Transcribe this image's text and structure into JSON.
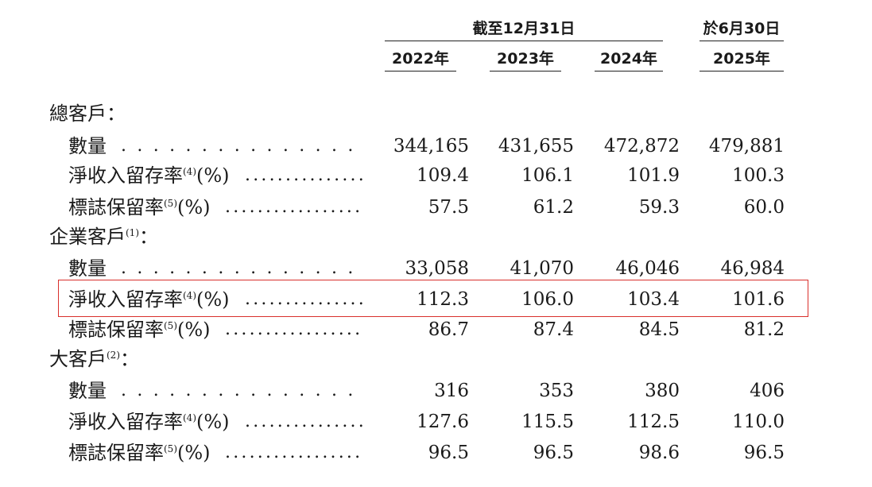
{
  "header": {
    "group_label": "截至12月31日",
    "interim_label": "於6月30日",
    "years": [
      "2022年",
      "2023年",
      "2024年",
      "2025年"
    ]
  },
  "sections": [
    {
      "title": "總客戶",
      "title_note": "",
      "title_suffix": "：",
      "rows": [
        {
          "label": "數量",
          "note": "",
          "unit": "",
          "values": [
            "344,165",
            "431,655",
            "472,872",
            "479,881"
          ]
        },
        {
          "label": "淨收入留存率",
          "note": "(4)",
          "unit": "(%)",
          "values": [
            "109.4",
            "106.1",
            "101.9",
            "100.3"
          ]
        },
        {
          "label": "標誌保留率",
          "note": "(5)",
          "unit": "(%)",
          "values": [
            "57.5",
            "61.2",
            "59.3",
            "60.0"
          ]
        }
      ]
    },
    {
      "title": "企業客戶",
      "title_note": "(1)",
      "title_suffix": "：",
      "rows": [
        {
          "label": "數量",
          "note": "",
          "unit": "",
          "values": [
            "33,058",
            "41,070",
            "46,046",
            "46,984"
          ]
        },
        {
          "label": "淨收入留存率",
          "note": "(4)",
          "unit": "(%)",
          "values": [
            "112.3",
            "106.0",
            "103.4",
            "101.6"
          ]
        },
        {
          "label": "標誌保留率",
          "note": "(5)",
          "unit": "(%)",
          "values": [
            "86.7",
            "87.4",
            "84.5",
            "81.2"
          ]
        }
      ]
    },
    {
      "title": "大客戶",
      "title_note": "(2)",
      "title_suffix": "：",
      "rows": [
        {
          "label": "數量",
          "note": "",
          "unit": "",
          "values": [
            "316",
            "353",
            "380",
            "406"
          ]
        },
        {
          "label": "淨收入留存率",
          "note": "(4)",
          "unit": "(%)",
          "values": [
            "127.6",
            "115.5",
            "112.5",
            "110.0"
          ]
        },
        {
          "label": "標誌保留率",
          "note": "(5)",
          "unit": "(%)",
          "values": [
            "96.5",
            "96.5",
            "98.6",
            "96.5"
          ]
        }
      ]
    }
  ],
  "leaders": {
    "long": ". . . . . . . . . . . . . . . . . . . . . . . . . . . . . . . . . . . . . . . . . .",
    "dense": "............................................................"
  },
  "highlight": {
    "color": "#d9302c"
  }
}
